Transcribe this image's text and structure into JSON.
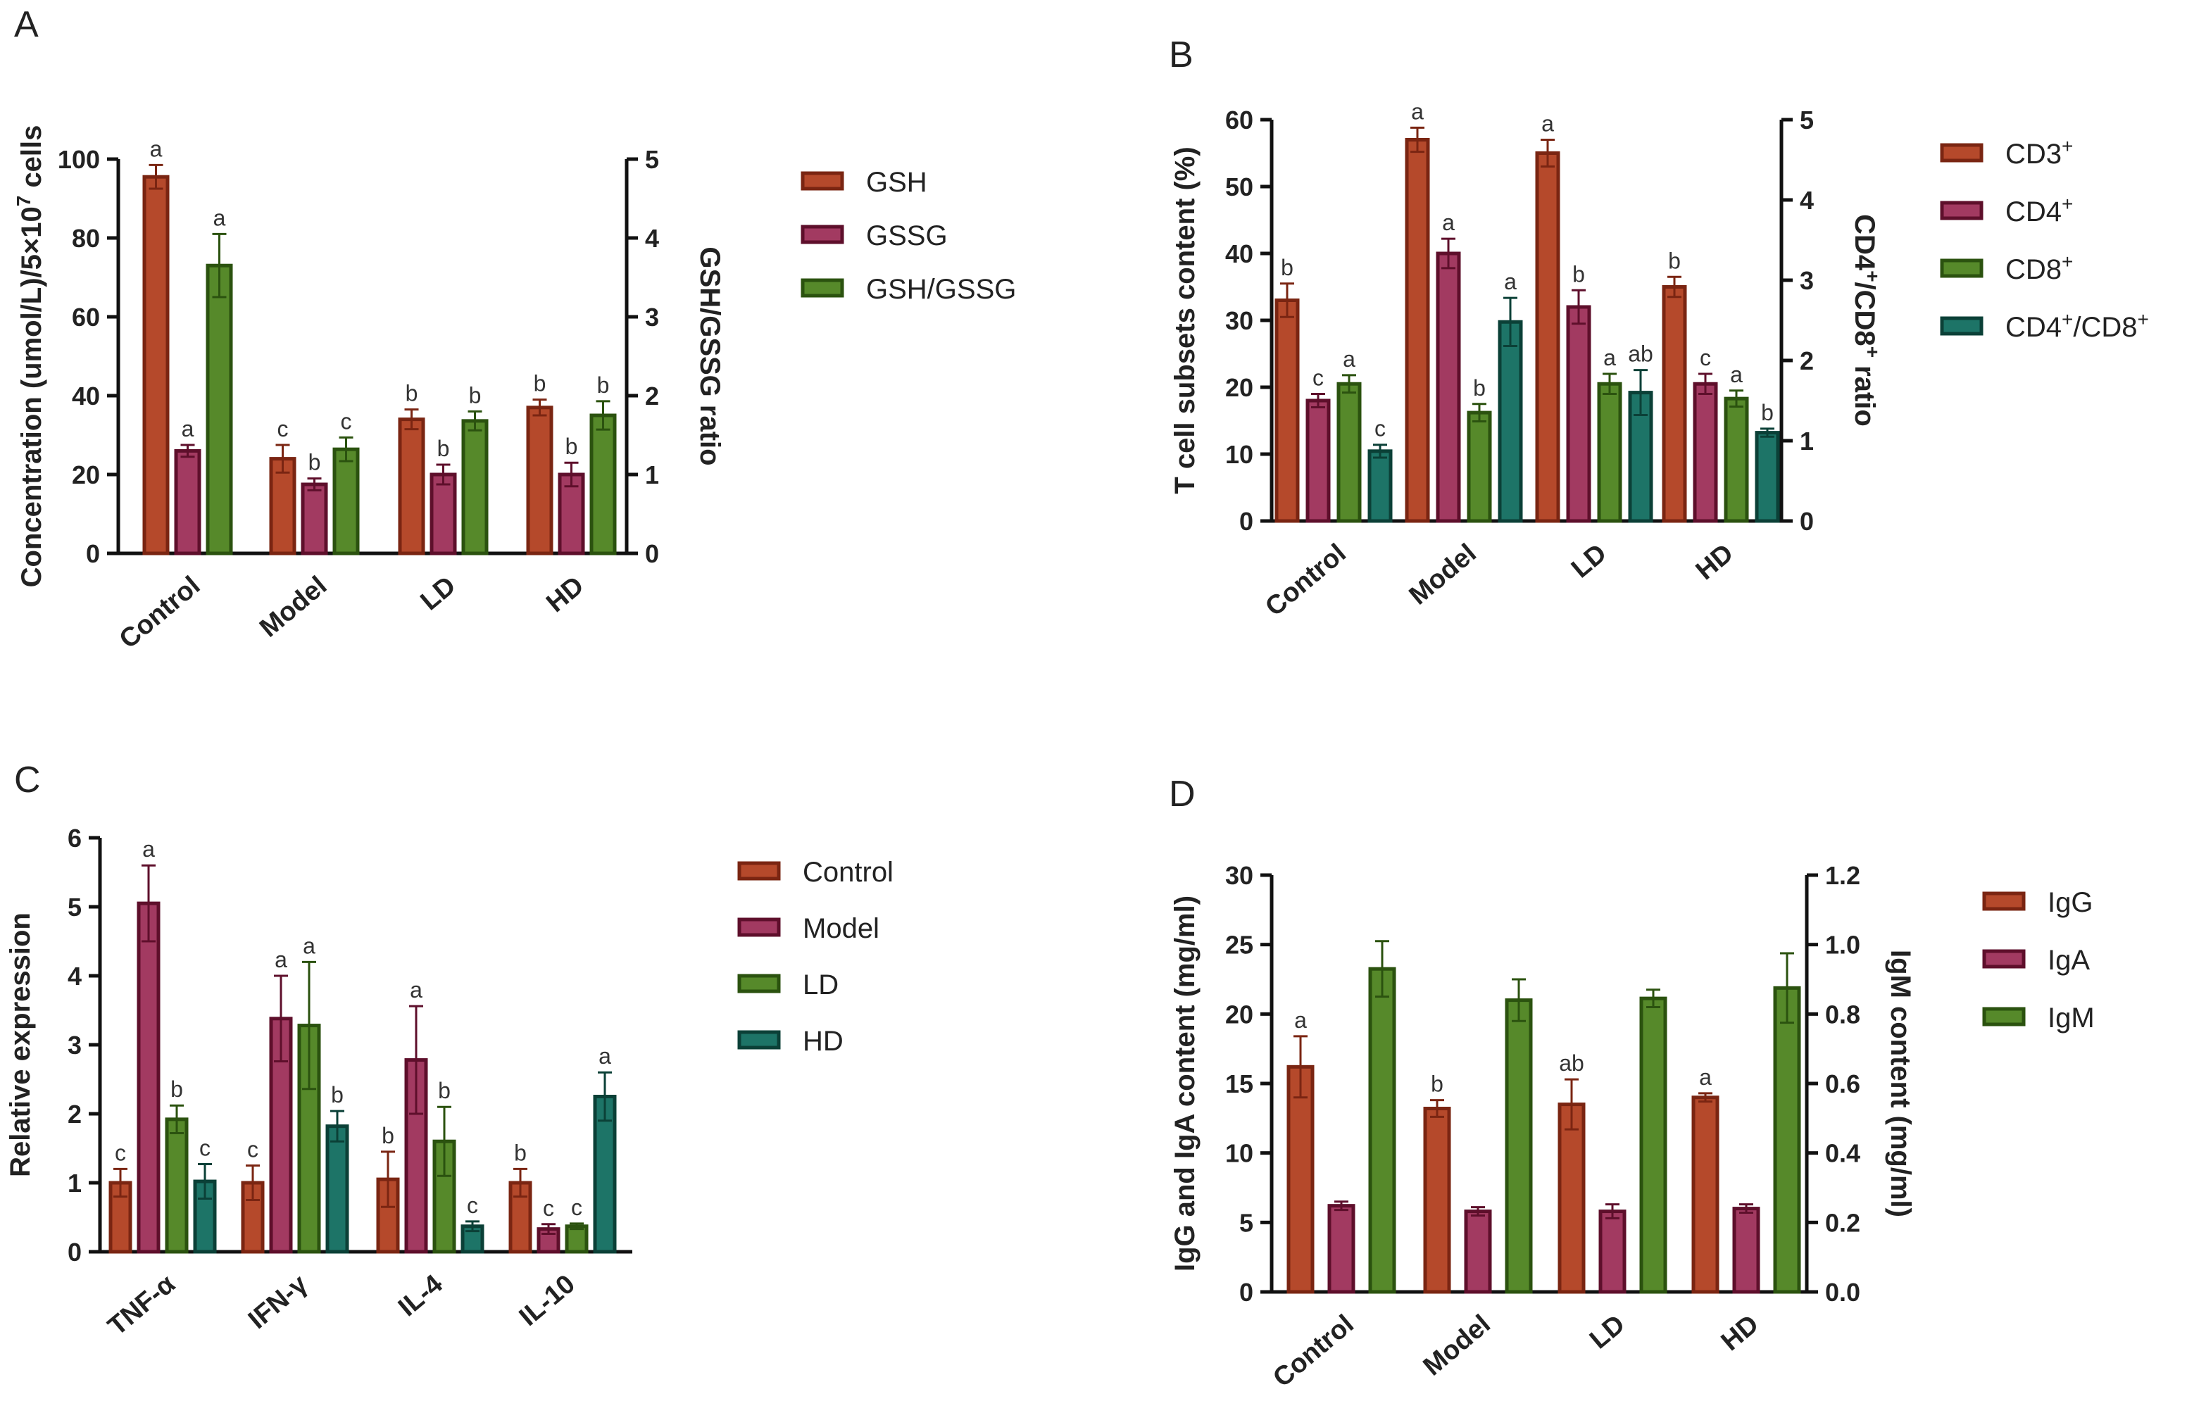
{
  "colors": {
    "c1": {
      "fill": "#b5492b",
      "stroke": "#7a2512"
    },
    "c2": {
      "fill": "#a23a61",
      "stroke": "#5e0f2b"
    },
    "c3": {
      "fill": "#56892a",
      "stroke": "#2b520f"
    },
    "c4": {
      "fill": "#1d7467",
      "stroke": "#0b4037"
    }
  },
  "chart_data": [
    {
      "panel": "A",
      "type": "bar",
      "categories": [
        "Control",
        "Model",
        "LD",
        "HD"
      ],
      "ylabel_left": "Concentration (umol/L)/5×10",
      "ylabel_left_sup": "7",
      "ylabel_left_tail": " cells",
      "ylabel_right": "GSH/GSSG ratio",
      "ylim_left": [
        0,
        100
      ],
      "yticks_left": [
        "0",
        "20",
        "40",
        "60",
        "80",
        "100"
      ],
      "ylim_right": [
        0,
        5
      ],
      "yticks_right": [
        "0",
        "1",
        "2",
        "3",
        "4",
        "5"
      ],
      "series": [
        {
          "name": "GSH",
          "axis": "left",
          "values": [
            95.5,
            24,
            34,
            37
          ],
          "errors": [
            3,
            3.5,
            2.5,
            2
          ],
          "labels": [
            "a",
            "c",
            "b",
            "b"
          ]
        },
        {
          "name": "GSSG",
          "axis": "left",
          "values": [
            26,
            17.5,
            20,
            20
          ],
          "errors": [
            1.5,
            1.5,
            2.5,
            3
          ],
          "labels": [
            "a",
            "b",
            "b",
            "b"
          ]
        },
        {
          "name": "GSH/GSSG",
          "axis": "right",
          "values": [
            3.65,
            1.32,
            1.68,
            1.75
          ],
          "errors": [
            0.4,
            0.15,
            0.12,
            0.18
          ],
          "labels": [
            "a",
            "c",
            "b",
            "b"
          ]
        }
      ],
      "legend": [
        {
          "label": "GSH"
        },
        {
          "label": "GSSG"
        },
        {
          "label": "GSH/GSSG"
        }
      ]
    },
    {
      "panel": "B",
      "type": "bar",
      "categories": [
        "Control",
        "Model",
        "LD",
        "HD"
      ],
      "ylabel_left": "T cell subsets content (%)",
      "ylabel_right": "CD4",
      "ylabel_right_parts": [
        "CD4",
        "+",
        "/CD8",
        "+",
        " ratio"
      ],
      "ylim_left": [
        0,
        60
      ],
      "yticks_left": [
        "0",
        "10",
        "20",
        "30",
        "40",
        "50",
        "60"
      ],
      "ylim_right": [
        0,
        5
      ],
      "yticks_right": [
        "0",
        "1",
        "2",
        "3",
        "4",
        "5"
      ],
      "series": [
        {
          "name": "CD3+",
          "axis": "left",
          "values": [
            33,
            57,
            55,
            35
          ],
          "errors": [
            2.5,
            1.8,
            2,
            1.5
          ],
          "labels": [
            "b",
            "a",
            "a",
            "b"
          ]
        },
        {
          "name": "CD4+",
          "axis": "left",
          "values": [
            18,
            40,
            32,
            20.5
          ],
          "errors": [
            1,
            2.2,
            2.5,
            1.5
          ],
          "labels": [
            "c",
            "a",
            "b",
            "c"
          ]
        },
        {
          "name": "CD8+",
          "axis": "left",
          "values": [
            20.5,
            16.2,
            20.5,
            18.3
          ],
          "errors": [
            1.3,
            1.3,
            1.5,
            1.2
          ],
          "labels": [
            "a",
            "b",
            "a",
            "a"
          ]
        },
        {
          "name": "CD4+/CD8+",
          "axis": "right",
          "values": [
            0.87,
            2.48,
            1.6,
            1.1
          ],
          "errors": [
            0.08,
            0.3,
            0.28,
            0.05
          ],
          "labels": [
            "c",
            "a",
            "ab",
            "b"
          ]
        }
      ],
      "legend": [
        {
          "label": "CD3",
          "sup": "+"
        },
        {
          "label": "CD4",
          "sup": "+"
        },
        {
          "label": "CD8",
          "sup": "+"
        },
        {
          "label": "CD4",
          "sup": "+",
          "label2": "/CD8",
          "sup2": "+"
        }
      ]
    },
    {
      "panel": "C",
      "type": "bar",
      "categories": [
        "TNF-α",
        "IFN-γ",
        "IL-4",
        "IL-10"
      ],
      "ylabel_left": "Relative expression",
      "ylim_left": [
        0,
        6
      ],
      "yticks_left": [
        "0",
        "1",
        "2",
        "3",
        "4",
        "5",
        "6"
      ],
      "series": [
        {
          "name": "Control",
          "axis": "left",
          "values": [
            1.0,
            1.0,
            1.05,
            1.0
          ],
          "errors": [
            0.2,
            0.25,
            0.4,
            0.2
          ],
          "labels": [
            "c",
            "c",
            "b",
            "b"
          ]
        },
        {
          "name": "Model",
          "axis": "left",
          "values": [
            5.05,
            3.38,
            2.78,
            0.33
          ],
          "errors": [
            0.55,
            0.62,
            0.78,
            0.07
          ],
          "labels": [
            "a",
            "a",
            "a",
            "c"
          ]
        },
        {
          "name": "LD",
          "axis": "left",
          "values": [
            1.92,
            3.28,
            1.6,
            0.37
          ],
          "errors": [
            0.2,
            0.92,
            0.5,
            0.04
          ],
          "labels": [
            "b",
            "a",
            "b",
            "c"
          ]
        },
        {
          "name": "HD",
          "axis": "left",
          "values": [
            1.02,
            1.82,
            0.37,
            2.25
          ],
          "errors": [
            0.25,
            0.22,
            0.07,
            0.35
          ],
          "labels": [
            "c",
            "b",
            "c",
            "a"
          ]
        }
      ],
      "legend": [
        {
          "label": "Control"
        },
        {
          "label": "Model"
        },
        {
          "label": "LD"
        },
        {
          "label": "HD"
        }
      ]
    },
    {
      "panel": "D",
      "type": "bar",
      "categories": [
        "Control",
        "Model",
        "LD",
        "HD"
      ],
      "ylabel_left": "IgG and IgA content (mg/ml)",
      "ylabel_right": "IgM content (mg/ml)",
      "ylim_left": [
        0,
        30
      ],
      "yticks_left": [
        "0",
        "5",
        "10",
        "15",
        "20",
        "25",
        "30"
      ],
      "ylim_right": [
        0,
        1.2
      ],
      "yticks_right": [
        "0.0",
        "0.2",
        "0.4",
        "0.6",
        "0.8",
        "1.0",
        "1.2"
      ],
      "series": [
        {
          "name": "IgG",
          "axis": "left",
          "values": [
            16.2,
            13.2,
            13.5,
            14
          ],
          "errors": [
            2.2,
            0.6,
            1.8,
            0.3
          ],
          "labels": [
            "a",
            "b",
            "ab",
            "a"
          ]
        },
        {
          "name": "IgA",
          "axis": "left",
          "values": [
            6.2,
            5.8,
            5.8,
            6.0
          ],
          "errors": [
            0.3,
            0.3,
            0.5,
            0.3
          ],
          "labels": [
            "",
            "",
            "",
            ""
          ]
        },
        {
          "name": "IgM",
          "axis": "right",
          "values": [
            0.93,
            0.84,
            0.845,
            0.875
          ],
          "errors": [
            0.08,
            0.06,
            0.025,
            0.1
          ],
          "labels": [
            "",
            "",
            "",
            ""
          ]
        }
      ],
      "legend": [
        {
          "label": "IgG"
        },
        {
          "label": "IgA"
        },
        {
          "label": "IgM"
        }
      ]
    }
  ]
}
